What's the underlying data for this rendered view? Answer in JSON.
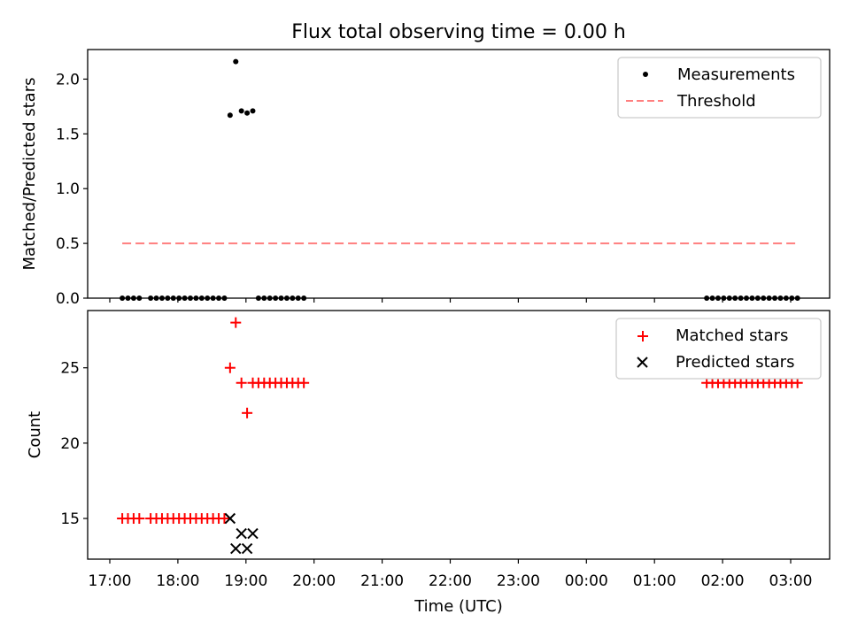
{
  "chart_data": [
    {
      "type": "scatter",
      "title": "Flux total observing time = 0.00 h",
      "xlabel": "",
      "ylabel": "Matched/Predicted stars",
      "ylim": [
        0,
        2.27
      ],
      "yticks": [
        0.0,
        0.5,
        1.0,
        1.5,
        2.0
      ],
      "ytick_labels": [
        "0.0",
        "0.5",
        "1.0",
        "1.5",
        "2.0"
      ],
      "legend_position": "top-right",
      "series": [
        {
          "name": "Measurements",
          "kind": "points",
          "color": "#000000",
          "x": [
            "17:11",
            "17:16",
            "17:21",
            "17:26",
            "17:36",
            "17:41",
            "17:46",
            "17:51",
            "17:56",
            "18:01",
            "18:06",
            "18:11",
            "18:16",
            "18:21",
            "18:26",
            "18:31",
            "18:36",
            "18:41",
            "18:46",
            "18:51",
            "18:56",
            "19:01",
            "19:06",
            "19:11",
            "19:16",
            "19:21",
            "19:26",
            "19:31",
            "19:36",
            "19:41",
            "19:46",
            "19:51",
            "01:46",
            "01:51",
            "01:56",
            "02:01",
            "02:06",
            "02:11",
            "02:16",
            "02:21",
            "02:26",
            "02:31",
            "02:36",
            "02:41",
            "02:46",
            "02:51",
            "02:56",
            "03:01",
            "03:06"
          ],
          "y": [
            0,
            0,
            0,
            0,
            0,
            0,
            0,
            0,
            0,
            0,
            0,
            0,
            0,
            0,
            0,
            0,
            0,
            0,
            1.67,
            2.16,
            1.71,
            1.69,
            1.71,
            0,
            0,
            0,
            0,
            0,
            0,
            0,
            0,
            0,
            0,
            0,
            0,
            0,
            0,
            0,
            0,
            0,
            0,
            0,
            0,
            0,
            0,
            0,
            0,
            0,
            0
          ]
        },
        {
          "name": "Threshold",
          "kind": "dashed-line",
          "color": "#ff7f7f",
          "x": [
            "17:11",
            "03:06"
          ],
          "y": [
            0.5,
            0.5
          ]
        }
      ]
    },
    {
      "type": "scatter",
      "title": "",
      "xlabel": "Time (UTC)",
      "ylabel": "Count",
      "ylim": [
        12.3,
        28.8
      ],
      "yticks": [
        15,
        20,
        25
      ],
      "ytick_labels": [
        "15",
        "20",
        "25"
      ],
      "x_ticks": [
        "17:00",
        "18:00",
        "19:00",
        "20:00",
        "21:00",
        "22:00",
        "23:00",
        "00:00",
        "01:00",
        "02:00",
        "03:00"
      ],
      "legend_position": "top-right",
      "series": [
        {
          "name": "Matched stars",
          "marker": "plus",
          "color": "#ff0000",
          "x": [
            "17:11",
            "17:16",
            "17:21",
            "17:26",
            "17:36",
            "17:41",
            "17:46",
            "17:51",
            "17:56",
            "18:01",
            "18:06",
            "18:11",
            "18:16",
            "18:21",
            "18:26",
            "18:31",
            "18:36",
            "18:41",
            "18:46",
            "18:51",
            "18:56",
            "19:01",
            "19:06",
            "19:11",
            "19:16",
            "19:21",
            "19:26",
            "19:31",
            "19:36",
            "19:41",
            "19:46",
            "19:51",
            "01:46",
            "01:51",
            "01:56",
            "02:01",
            "02:06",
            "02:11",
            "02:16",
            "02:21",
            "02:26",
            "02:31",
            "02:36",
            "02:41",
            "02:46",
            "02:51",
            "02:56",
            "03:01",
            "03:06"
          ],
          "y": [
            15,
            15,
            15,
            15,
            15,
            15,
            15,
            15,
            15,
            15,
            15,
            15,
            15,
            15,
            15,
            15,
            15,
            15,
            25,
            28,
            24,
            22,
            24,
            24,
            24,
            24,
            24,
            24,
            24,
            24,
            24,
            24,
            24,
            24,
            24,
            24,
            24,
            24,
            24,
            24,
            24,
            24,
            24,
            24,
            24,
            24,
            24,
            24,
            24
          ]
        },
        {
          "name": "Predicted stars",
          "marker": "x",
          "color": "#000000",
          "x": [
            "18:46",
            "18:51",
            "18:56",
            "19:01",
            "19:06"
          ],
          "y": [
            15,
            13,
            14,
            13,
            14
          ]
        }
      ]
    }
  ]
}
